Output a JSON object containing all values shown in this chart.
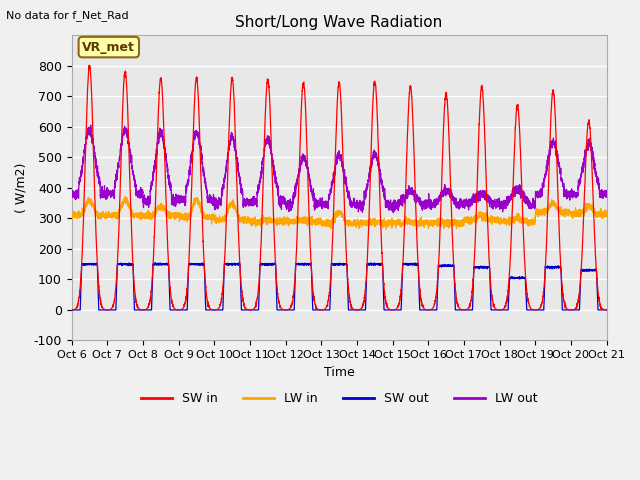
{
  "title": "Short/Long Wave Radiation",
  "xlabel": "Time",
  "ylabel": "( W/m2)",
  "ylim": [
    -100,
    900
  ],
  "yticks": [
    -100,
    0,
    100,
    200,
    300,
    400,
    500,
    600,
    700,
    800
  ],
  "note": "No data for f_Net_Rad",
  "legend_label": "VR_met",
  "x_tick_labels": [
    "Oct 6",
    "Oct 7",
    "Oct 8",
    "Oct 9",
    "Oct 10",
    "Oct 11",
    "Oct 12",
    "Oct 13",
    "Oct 14",
    "Oct 15",
    "Oct 16",
    "Oct 17",
    "Oct 18",
    "Oct 19",
    "Oct 20",
    "Oct 21"
  ],
  "colors": {
    "SW_in": "#ff0000",
    "LW_in": "#ffa500",
    "SW_out": "#0000cc",
    "LW_out": "#9900cc"
  },
  "background_color": "#e8e8e8",
  "grid_color": "#ffffff",
  "num_days": 15,
  "SW_in_peak": [
    800,
    780,
    760,
    760,
    760,
    755,
    745,
    745,
    750,
    730,
    710,
    730,
    670,
    720,
    620
  ],
  "SW_out_peak": [
    150,
    150,
    150,
    150,
    150,
    150,
    150,
    150,
    150,
    150,
    145,
    140,
    105,
    140,
    130
  ],
  "LW_in_base": [
    310,
    310,
    310,
    305,
    295,
    290,
    290,
    285,
    285,
    285,
    285,
    295,
    290,
    320,
    315
  ],
  "LW_in_bump": [
    50,
    50,
    30,
    55,
    55,
    5,
    5,
    35,
    5,
    5,
    0,
    15,
    10,
    30,
    25
  ],
  "LW_out_base": [
    380,
    380,
    360,
    360,
    350,
    355,
    345,
    345,
    345,
    345,
    345,
    350,
    345,
    380,
    380
  ],
  "LW_out_peak": [
    590,
    590,
    580,
    580,
    565,
    560,
    500,
    505,
    510,
    390,
    390,
    380,
    395,
    550,
    545
  ]
}
